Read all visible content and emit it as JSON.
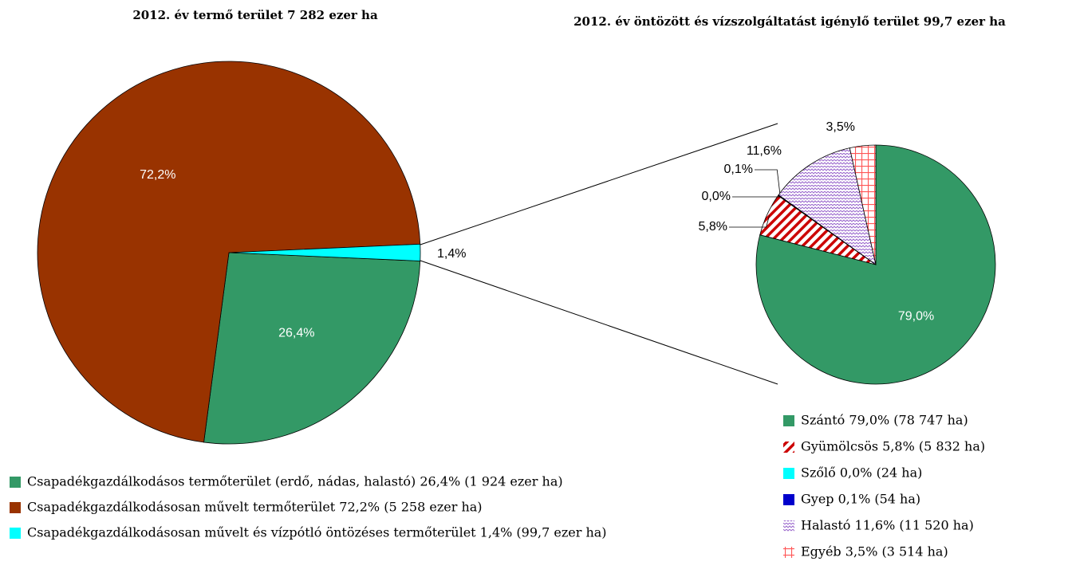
{
  "chart_data": [
    {
      "type": "pie",
      "title": "2012. év termő terület 7 282 ezer ha",
      "categories": [
        "Csapadékgazdálkodásos termőterület (erdő, nádas, halastó) 26,4% (1 924 ezer ha)",
        "Csapadékgazdálkodásosan művelt termőterület 72,2% (5 258 ezer ha)",
        "Csapadékgazdálkodásosan művelt és vízpótló öntözéses termőterület 1,4% (99,7 ezer ha)"
      ],
      "values": [
        26.4,
        72.2,
        1.4
      ],
      "value_labels": [
        "26,4%",
        "72,2%",
        "1,4%"
      ],
      "colors": [
        "#339966",
        "#993300",
        "#00ffff"
      ],
      "hatch": [
        null,
        null,
        null
      ]
    },
    {
      "type": "pie",
      "title": "2012. év öntözött és vízszolgáltatást igénylő terület 99,7 ezer ha",
      "categories": [
        "Szántó 79,0% (78 747 ha)",
        "Gyümölcsös 5,8% (5 832 ha)",
        "Szőlő 0,0% (24 ha)",
        "Gyep 0,1% (54 ha)",
        "Halastó 11,6% (11 520 ha)",
        "Egyéb 3,5% (3 514 ha)"
      ],
      "values": [
        79.0,
        5.8,
        0.0,
        0.1,
        11.6,
        3.5
      ],
      "value_labels": [
        "79,0%",
        "5,8%",
        "0,0%",
        "0,1%",
        "11,6%",
        "3,5%"
      ],
      "colors": [
        "#339966",
        "#cc0000",
        "#00ffff",
        "#0000cc",
        "#9966cc",
        "#ff5555"
      ],
      "hatch": [
        null,
        "diagonal",
        null,
        null,
        "wave",
        "grid"
      ]
    }
  ]
}
